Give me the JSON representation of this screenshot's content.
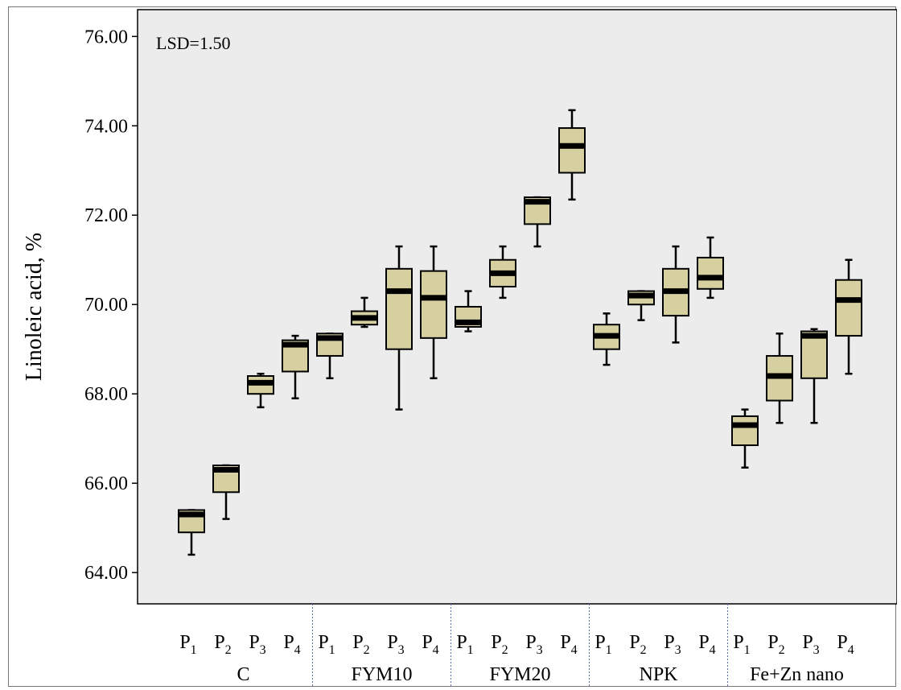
{
  "chart_data": {
    "type": "box",
    "title": "",
    "ylabel": "Linoleic acid, %",
    "xlabel": "",
    "ylim": [
      63.3,
      76.6
    ],
    "yticks": [
      "64.00",
      "66.00",
      "68.00",
      "70.00",
      "72.00",
      "74.00",
      "76.00"
    ],
    "annotation": "LSD=1.50",
    "grid": false,
    "colors": {
      "plot_bg": "#ececec",
      "box_fill": "#d6d0a0",
      "median": "#000000",
      "separator": "#5a6fa8"
    },
    "groups": [
      {
        "label": "C",
        "boxes": [
          {
            "sub": "1",
            "min": 64.4,
            "q1": 64.9,
            "median": 65.3,
            "q3": 65.4,
            "max": 65.4
          },
          {
            "sub": "2",
            "min": 65.2,
            "q1": 65.8,
            "median": 66.3,
            "q3": 66.4,
            "max": 66.4
          },
          {
            "sub": "3",
            "min": 67.7,
            "q1": 68.0,
            "median": 68.25,
            "q3": 68.4,
            "max": 68.45
          },
          {
            "sub": "4",
            "min": 67.9,
            "q1": 68.5,
            "median": 69.1,
            "q3": 69.2,
            "max": 69.3
          }
        ]
      },
      {
        "label": "FYM10",
        "boxes": [
          {
            "sub": "1",
            "min": 68.35,
            "q1": 68.85,
            "median": 69.25,
            "q3": 69.35,
            "max": 69.35
          },
          {
            "sub": "2",
            "min": 69.5,
            "q1": 69.55,
            "median": 69.7,
            "q3": 69.85,
            "max": 70.15
          },
          {
            "sub": "3",
            "min": 67.65,
            "q1": 69.0,
            "median": 70.3,
            "q3": 70.8,
            "max": 71.3
          },
          {
            "sub": "4",
            "min": 68.35,
            "q1": 69.25,
            "median": 70.15,
            "q3": 70.75,
            "max": 71.3
          }
        ]
      },
      {
        "label": "FYM20",
        "boxes": [
          {
            "sub": "1",
            "min": 69.4,
            "q1": 69.5,
            "median": 69.6,
            "q3": 69.95,
            "max": 70.3
          },
          {
            "sub": "2",
            "min": 70.15,
            "q1": 70.4,
            "median": 70.7,
            "q3": 71.0,
            "max": 71.3
          },
          {
            "sub": "3",
            "min": 71.3,
            "q1": 71.8,
            "median": 72.3,
            "q3": 72.4,
            "max": 72.4
          },
          {
            "sub": "4",
            "min": 72.35,
            "q1": 72.95,
            "median": 73.55,
            "q3": 73.95,
            "max": 74.35
          }
        ]
      },
      {
        "label": "NPK",
        "boxes": [
          {
            "sub": "1",
            "min": 68.65,
            "q1": 69.0,
            "median": 69.3,
            "q3": 69.55,
            "max": 69.8
          },
          {
            "sub": "2",
            "min": 69.65,
            "q1": 70.0,
            "median": 70.2,
            "q3": 70.3,
            "max": 70.3
          },
          {
            "sub": "3",
            "min": 69.15,
            "q1": 69.75,
            "median": 70.3,
            "q3": 70.8,
            "max": 71.3
          },
          {
            "sub": "4",
            "min": 70.15,
            "q1": 70.35,
            "median": 70.6,
            "q3": 71.05,
            "max": 71.5
          }
        ]
      },
      {
        "label": "Fe+Zn nano",
        "boxes": [
          {
            "sub": "1",
            "min": 66.35,
            "q1": 66.85,
            "median": 67.3,
            "q3": 67.5,
            "max": 67.65
          },
          {
            "sub": "2",
            "min": 67.35,
            "q1": 67.85,
            "median": 68.4,
            "q3": 68.85,
            "max": 69.35
          },
          {
            "sub": "3",
            "min": 67.35,
            "q1": 68.35,
            "median": 69.3,
            "q3": 69.4,
            "max": 69.45
          },
          {
            "sub": "4",
            "min": 68.45,
            "q1": 69.3,
            "median": 70.1,
            "q3": 70.55,
            "max": 71.0
          }
        ]
      }
    ]
  }
}
